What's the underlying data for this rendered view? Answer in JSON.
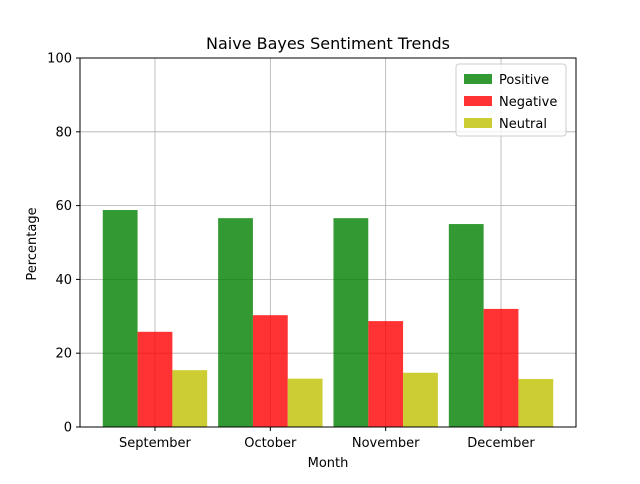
{
  "chart_data": {
    "type": "bar",
    "title": "Naive Bayes Sentiment Trends",
    "xlabel": "Month",
    "ylabel": "Percentage",
    "categories": [
      "September",
      "October",
      "November",
      "December"
    ],
    "ylim": [
      0,
      100
    ],
    "yticks": [
      0,
      20,
      40,
      60,
      80,
      100
    ],
    "grid": true,
    "legend_position": "top-right",
    "series": [
      {
        "name": "Positive",
        "color": "#008000",
        "values": [
          58.8,
          56.6,
          56.6,
          55.0
        ]
      },
      {
        "name": "Negative",
        "color": "#ff0000",
        "values": [
          25.8,
          30.3,
          28.7,
          32.0
        ]
      },
      {
        "name": "Neutral",
        "color": "#bfbf00",
        "values": [
          15.4,
          13.1,
          14.7,
          13.0
        ]
      }
    ]
  }
}
